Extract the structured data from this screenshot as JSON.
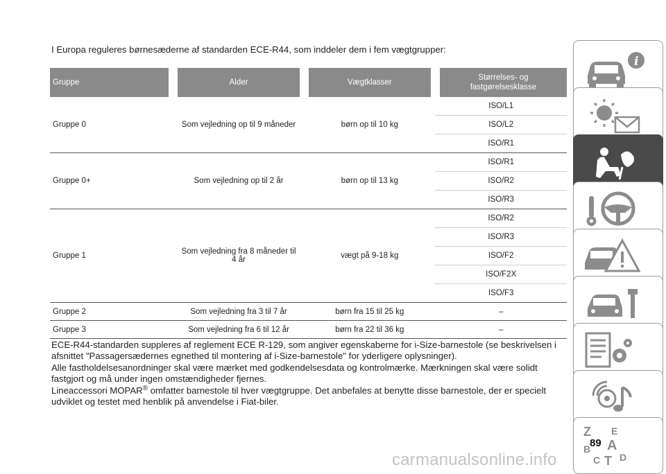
{
  "intro": "I Europa reguleres børnesæderne af standarden ECE-R44, som inddeler dem i fem vægtgrupper:",
  "table": {
    "headers": [
      "Gruppe",
      "Alder",
      "Vægtklasser",
      "Størrelses- og",
      "fastgørelsesklasse"
    ],
    "groups": [
      {
        "gruppe": "Gruppe 0",
        "alder": "Som vejledning op til 9 måneder",
        "alder2": "",
        "vaegt": "børn op til 10 kg",
        "iso": [
          "ISO/L1",
          "ISO/L2",
          "ISO/R1"
        ]
      },
      {
        "gruppe": "Gruppe 0+",
        "alder": "Som vejledning op til 2 år",
        "alder2": "",
        "vaegt": "børn op til 13 kg",
        "iso": [
          "ISO/R1",
          "ISO/R2",
          "ISO/R3"
        ]
      },
      {
        "gruppe": "Gruppe 1",
        "alder": "Som vejledning fra 8 måneder til",
        "alder2": "4 år",
        "vaegt": "vægt på 9-18 kg",
        "iso": [
          "ISO/R2",
          "ISO/R3",
          "ISO/F2",
          "ISO/F2X",
          "ISO/F3"
        ]
      }
    ],
    "simple_rows": [
      {
        "gruppe": "Gruppe 2",
        "alder": "Som vejledning fra 3 til 7 år",
        "vaegt": "børn fra 15 til 25 kg",
        "iso": "–"
      },
      {
        "gruppe": "Gruppe 3",
        "alder": "Som vejledning fra 6 til 12 år",
        "vaegt": "børn fra 22 til 36 kg",
        "iso": "–"
      }
    ]
  },
  "paragraphs": {
    "p1": "ECE-R44-standarden suppleres af reglement ECE R-129, som angiver egenskaberne for i-Size-barnestole (se beskrivelsen i afsnittet \"Passagersædernes egnethed til montering af i-Size-barnestole\" for yderligere oplysninger).",
    "p2": "Alle fastholdelsesanordninger skal være mærket med godkendelsesdata og kontrolmærke. Mærkningen skal være solidt fastgjort og må under ingen omstændigheder fjernes.",
    "p3_a": "Lineaccessori MOPAR",
    "p3_sup": "®",
    "p3_b": " omfatter barnestole til hver vægtgruppe. Det anbefales at benytte disse barnestole, der er specielt udviklet og testet med henblik på anvendelse i Fiat-biler."
  },
  "page_number": "89",
  "watermark": "carmanualsonline.info",
  "sidebar_tabs": [
    {
      "icon": "car-info-icon",
      "active": false
    },
    {
      "icon": "warning-lights-icon",
      "active": false
    },
    {
      "icon": "seat-airbag-icon",
      "active": true
    },
    {
      "icon": "key-steering-wheel-icon",
      "active": false
    },
    {
      "icon": "car-warning-icon",
      "active": false
    },
    {
      "icon": "car-maintenance-icon",
      "active": false
    },
    {
      "icon": "technical-data-icon",
      "active": false
    },
    {
      "icon": "multimedia-icon",
      "active": false
    },
    {
      "icon": "alphabetical-index-icon",
      "active": false
    }
  ],
  "colors": {
    "header_bg": "#8a8a8a",
    "active_tab": "#4a4a4a",
    "icon_gray": "#8c8c8c"
  }
}
